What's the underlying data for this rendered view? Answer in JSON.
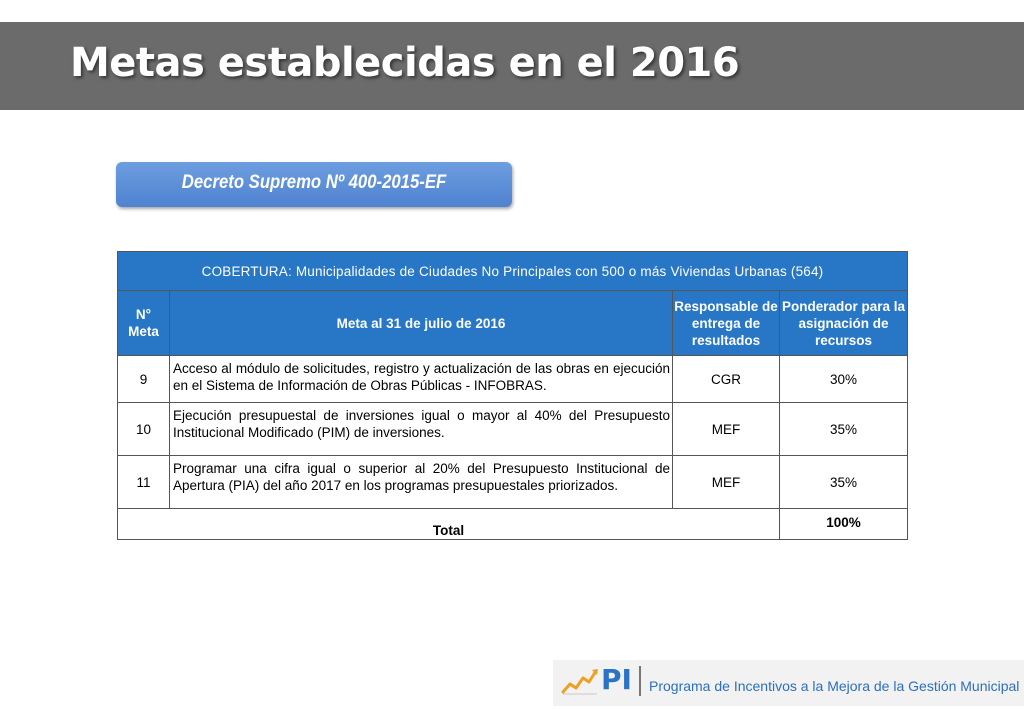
{
  "slide": {
    "title": "Metas establecidas en el 2016",
    "decree": "Decreto Supremo Nº 400-2015-EF"
  },
  "table": {
    "coverage": "COBERTURA: Municipalidades de Ciudades No Principales con 500 o más Viviendas Urbanas (564)",
    "headers": {
      "num": "N° Meta",
      "goal": "Meta al 31 de julio de 2016",
      "responsible": "Responsable de entrega de resultados",
      "weight": "Ponderador para la asignación de recursos"
    },
    "rows": [
      {
        "num": "9",
        "goal": "Acceso al módulo de solicitudes, registro y actualización de las obras en ejecución en el Sistema de Información de Obras Públicas - INFOBRAS.",
        "responsible": "CGR",
        "weight": "30%"
      },
      {
        "num": "10",
        "goal": "Ejecución presupuestal de inversiones igual o mayor al 40% del Presupuesto Institucional Modificado (PIM) de inversiones.",
        "responsible": "MEF",
        "weight": "35%"
      },
      {
        "num": "11",
        "goal": "Programar una cifra igual o superior al 20% del Presupuesto Institucional de Apertura (PIA) del año 2017 en los programas presupuestales priorizados.",
        "responsible": "MEF",
        "weight": "35%"
      }
    ],
    "total_label": "Total",
    "total_value": "100%"
  },
  "footer": {
    "logo_text": "PI",
    "logo_icon": "growth-chart-icon",
    "program_name": "Programa de Incentivos a la Mejora de la Gestión Municipal"
  },
  "colors": {
    "title_bar": "#6b6b6b",
    "table_header": "#2777c6",
    "decree_box": "#5a8ed8",
    "footer_text": "#2c6fc0"
  }
}
